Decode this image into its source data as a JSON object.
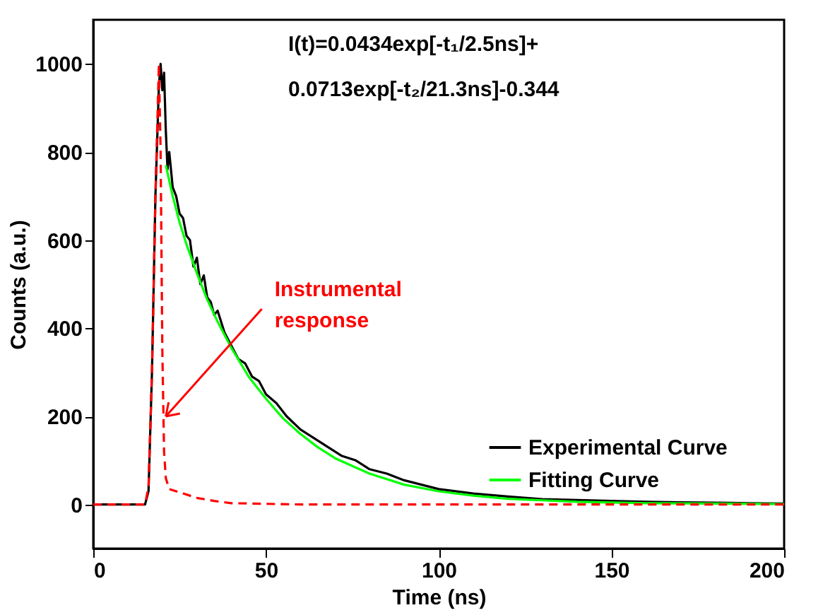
{
  "chart_data": {
    "type": "line",
    "xlabel": "Time (ns)",
    "ylabel": "Counts (a.u.)",
    "xlim": [
      0,
      200
    ],
    "ylim": [
      -100,
      1100
    ],
    "xticks": [
      0,
      50,
      100,
      150,
      200
    ],
    "yticks": [
      0,
      200,
      400,
      600,
      800,
      1000
    ],
    "grid": false,
    "legend": "bottom right",
    "line_style": "solid",
    "annotations": [
      "I(t)=0.0434exp[-t₁/2.5ns]+",
      "0.0713exp[-t₂/21.3ns]-0.344",
      {
        "text": "Instrumental\nresponse",
        "x": 21,
        "y": 200
      }
    ],
    "series": [
      {
        "name": "Experimental Curve",
        "color": "#000000",
        "x": [
          0,
          10,
          15,
          16,
          17,
          18,
          19,
          19.5,
          20,
          20.5,
          21,
          21.5,
          22,
          23,
          24,
          25,
          26,
          27,
          28,
          29,
          30,
          31,
          32,
          33,
          34,
          35,
          36,
          38,
          40,
          42,
          44,
          46,
          48,
          50,
          53,
          56,
          60,
          64,
          68,
          72,
          76,
          80,
          85,
          90,
          95,
          100,
          110,
          120,
          130,
          140,
          150,
          160,
          170,
          180,
          190,
          200
        ],
        "values": [
          0,
          0,
          0,
          30,
          300,
          700,
          950,
          1000,
          940,
          980,
          850,
          760,
          800,
          720,
          700,
          660,
          650,
          610,
          600,
          540,
          560,
          500,
          520,
          470,
          460,
          430,
          440,
          390,
          360,
          330,
          320,
          290,
          280,
          250,
          230,
          200,
          170,
          150,
          130,
          110,
          100,
          80,
          70,
          55,
          45,
          35,
          25,
          18,
          12,
          10,
          8,
          6,
          5,
          4,
          3,
          2
        ]
      },
      {
        "name": "Fitting Curve",
        "color": "#00ff00",
        "x": [
          21,
          23,
          25,
          27,
          30,
          33,
          36,
          40,
          45,
          50,
          55,
          60,
          65,
          70,
          80,
          90,
          100,
          110,
          120,
          140,
          160,
          180,
          200
        ],
        "values": [
          770,
          700,
          640,
          590,
          525,
          465,
          415,
          355,
          290,
          240,
          195,
          160,
          130,
          105,
          70,
          45,
          30,
          20,
          13,
          6,
          3,
          2,
          1
        ]
      },
      {
        "color": "#ff0000",
        "line_style": "dashed",
        "x": [
          0,
          15,
          16,
          17,
          18,
          19,
          19.5,
          20,
          20.5,
          21,
          22,
          24,
          26,
          30,
          35,
          40,
          60,
          100,
          150,
          200
        ],
        "values": [
          0,
          0,
          40,
          300,
          700,
          1000,
          800,
          350,
          120,
          60,
          35,
          30,
          25,
          15,
          8,
          3,
          0,
          0,
          0,
          0
        ]
      }
    ]
  }
}
